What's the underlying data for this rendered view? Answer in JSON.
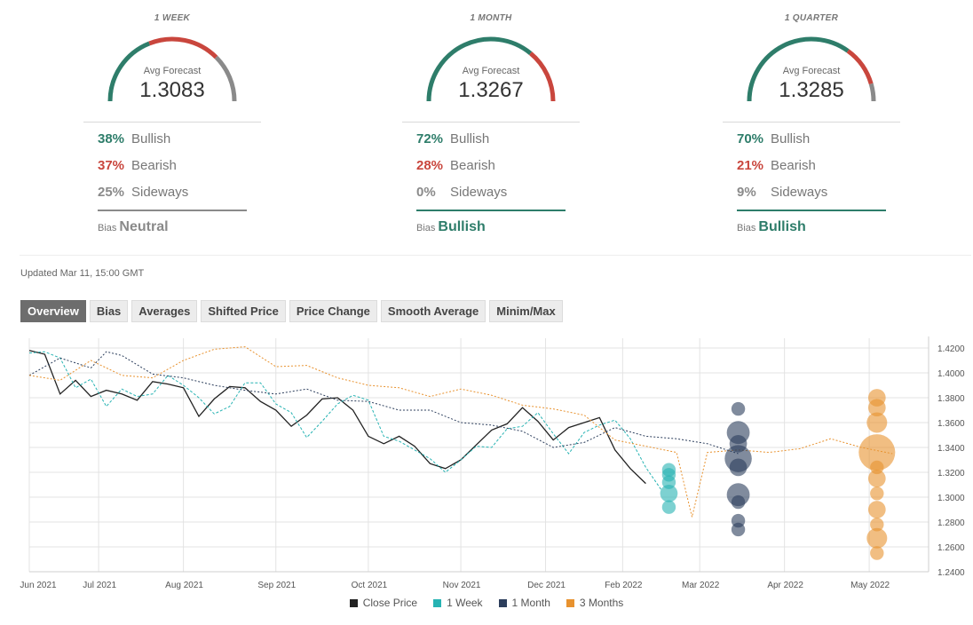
{
  "colors": {
    "green": "#2e7d6a",
    "red": "#c9463d",
    "gray": "#8a8a8a"
  },
  "panels": [
    {
      "title": "1 WEEK",
      "avg_label": "Avg Forecast",
      "avg_value": "1.3083",
      "bullish_pct": "38%",
      "bullish_label": "Bullish",
      "bearish_pct": "37%",
      "bearish_label": "Bearish",
      "sideways_pct": "25%",
      "sideways_label": "Sideways",
      "bias_label": "Bias",
      "bias_value": "Neutral",
      "bias_color": "#8a8a8a",
      "gauge": {
        "bullish": 0.38,
        "bearish": 0.37,
        "sideways": 0.25
      }
    },
    {
      "title": "1 MONTH",
      "avg_label": "Avg Forecast",
      "avg_value": "1.3267",
      "bullish_pct": "72%",
      "bullish_label": "Bullish",
      "bearish_pct": "28%",
      "bearish_label": "Bearish",
      "sideways_pct": "0%",
      "sideways_label": "Sideways",
      "bias_label": "Bias",
      "bias_value": "Bullish",
      "bias_color": "#2e7d6a",
      "gauge": {
        "bullish": 0.72,
        "bearish": 0.28,
        "sideways": 0.0
      }
    },
    {
      "title": "1 QUARTER",
      "avg_label": "Avg Forecast",
      "avg_value": "1.3285",
      "bullish_pct": "70%",
      "bullish_label": "Bullish",
      "bearish_pct": "21%",
      "bearish_label": "Bearish",
      "sideways_pct": "9%",
      "sideways_label": "Sideways",
      "bias_label": "Bias",
      "bias_value": "Bullish",
      "bias_color": "#2e7d6a",
      "gauge": {
        "bullish": 0.7,
        "bearish": 0.21,
        "sideways": 0.09
      }
    }
  ],
  "updated": "Updated Mar 11, 15:00 GMT",
  "tabs": [
    "Overview",
    "Bias",
    "Averages",
    "Shifted Price",
    "Price Change",
    "Smooth Average",
    "Minim/Max"
  ],
  "chart_data": {
    "type": "line",
    "x_ticks": [
      "Jun 2021",
      "Jul 2021",
      "Aug 2021",
      "Sep 2021",
      "Oct 2021",
      "Nov 2021",
      "Dec 2021",
      "Feb 2022",
      "Mar 2022",
      "Apr 2022",
      "May 2022"
    ],
    "y_ticks": [
      "1.4200",
      "1.4000",
      "1.3800",
      "1.3600",
      "1.3400",
      "1.3200",
      "1.3000",
      "1.2800",
      "1.2600",
      "1.2400"
    ],
    "ylim": [
      1.24,
      1.425
    ],
    "grid": true,
    "legend_position": "bottom",
    "series": [
      {
        "name": "Close Price",
        "color": "#222222",
        "style": "solid",
        "points": [
          [
            0,
            1.418
          ],
          [
            2,
            1.415
          ],
          [
            4,
            1.383
          ],
          [
            6,
            1.394
          ],
          [
            8,
            1.381
          ],
          [
            10,
            1.386
          ],
          [
            12,
            1.383
          ],
          [
            14,
            1.378
          ],
          [
            16,
            1.393
          ],
          [
            18,
            1.391
          ],
          [
            20,
            1.388
          ],
          [
            22,
            1.365
          ],
          [
            24,
            1.379
          ],
          [
            26,
            1.389
          ],
          [
            28,
            1.388
          ],
          [
            30,
            1.377
          ],
          [
            32,
            1.37
          ],
          [
            34,
            1.357
          ],
          [
            36,
            1.366
          ],
          [
            38,
            1.379
          ],
          [
            40,
            1.38
          ],
          [
            42,
            1.37
          ],
          [
            44,
            1.349
          ],
          [
            46,
            1.343
          ],
          [
            48,
            1.349
          ],
          [
            50,
            1.341
          ],
          [
            52,
            1.327
          ],
          [
            54,
            1.323
          ],
          [
            56,
            1.33
          ],
          [
            58,
            1.342
          ],
          [
            60,
            1.354
          ],
          [
            62,
            1.359
          ],
          [
            64,
            1.372
          ],
          [
            66,
            1.361
          ],
          [
            68,
            1.346
          ],
          [
            70,
            1.356
          ],
          [
            72,
            1.36
          ],
          [
            74,
            1.364
          ],
          [
            76,
            1.338
          ],
          [
            78,
            1.323
          ],
          [
            80,
            1.311
          ]
        ]
      },
      {
        "name": "1 Week",
        "color": "#27b3b3",
        "style": "dashed",
        "points": [
          [
            0,
            1.416
          ],
          [
            2,
            1.417
          ],
          [
            4,
            1.412
          ],
          [
            6,
            1.388
          ],
          [
            8,
            1.395
          ],
          [
            10,
            1.373
          ],
          [
            12,
            1.387
          ],
          [
            14,
            1.381
          ],
          [
            16,
            1.383
          ],
          [
            18,
            1.398
          ],
          [
            20,
            1.39
          ],
          [
            22,
            1.38
          ],
          [
            24,
            1.367
          ],
          [
            26,
            1.373
          ],
          [
            28,
            1.392
          ],
          [
            30,
            1.392
          ],
          [
            32,
            1.375
          ],
          [
            34,
            1.368
          ],
          [
            36,
            1.348
          ],
          [
            38,
            1.361
          ],
          [
            40,
            1.375
          ],
          [
            42,
            1.382
          ],
          [
            44,
            1.378
          ],
          [
            46,
            1.349
          ],
          [
            48,
            1.345
          ],
          [
            50,
            1.338
          ],
          [
            52,
            1.331
          ],
          [
            54,
            1.32
          ],
          [
            56,
            1.33
          ],
          [
            58,
            1.341
          ],
          [
            60,
            1.34
          ],
          [
            62,
            1.355
          ],
          [
            64,
            1.357
          ],
          [
            66,
            1.368
          ],
          [
            68,
            1.351
          ],
          [
            70,
            1.335
          ],
          [
            72,
            1.352
          ],
          [
            74,
            1.358
          ],
          [
            76,
            1.362
          ],
          [
            78,
            1.347
          ],
          [
            80,
            1.324
          ],
          [
            82,
            1.306
          ]
        ]
      },
      {
        "name": "1 Month",
        "color": "#2c3e5c",
        "style": "dotted",
        "points": [
          [
            0,
            1.398
          ],
          [
            4,
            1.412
          ],
          [
            8,
            1.404
          ],
          [
            10,
            1.417
          ],
          [
            12,
            1.414
          ],
          [
            16,
            1.399
          ],
          [
            20,
            1.396
          ],
          [
            24,
            1.39
          ],
          [
            28,
            1.386
          ],
          [
            32,
            1.383
          ],
          [
            36,
            1.387
          ],
          [
            40,
            1.378
          ],
          [
            44,
            1.377
          ],
          [
            48,
            1.37
          ],
          [
            52,
            1.37
          ],
          [
            56,
            1.36
          ],
          [
            60,
            1.358
          ],
          [
            64,
            1.353
          ],
          [
            68,
            1.34
          ],
          [
            72,
            1.344
          ],
          [
            76,
            1.356
          ],
          [
            80,
            1.349
          ],
          [
            84,
            1.347
          ],
          [
            88,
            1.343
          ],
          [
            92,
            1.335
          ]
        ]
      },
      {
        "name": "3 Months",
        "color": "#e8922f",
        "style": "dotted",
        "points": [
          [
            0,
            1.398
          ],
          [
            4,
            1.394
          ],
          [
            8,
            1.41
          ],
          [
            12,
            1.398
          ],
          [
            16,
            1.396
          ],
          [
            20,
            1.41
          ],
          [
            24,
            1.419
          ],
          [
            28,
            1.421
          ],
          [
            32,
            1.405
          ],
          [
            36,
            1.406
          ],
          [
            40,
            1.396
          ],
          [
            44,
            1.39
          ],
          [
            48,
            1.388
          ],
          [
            52,
            1.381
          ],
          [
            56,
            1.387
          ],
          [
            60,
            1.382
          ],
          [
            64,
            1.374
          ],
          [
            68,
            1.371
          ],
          [
            72,
            1.366
          ],
          [
            76,
            1.346
          ],
          [
            80,
            1.341
          ],
          [
            84,
            1.336
          ],
          [
            86,
            1.284
          ],
          [
            88,
            1.336
          ],
          [
            92,
            1.338
          ],
          [
            96,
            1.336
          ],
          [
            100,
            1.339
          ],
          [
            104,
            1.347
          ],
          [
            108,
            1.34
          ],
          [
            112,
            1.335
          ]
        ]
      }
    ],
    "forecast_bubbles": [
      {
        "series": "1 Week",
        "color": "#27b3b3",
        "x": 83,
        "values": [
          1.322,
          1.318,
          1.312,
          1.303,
          1.292
        ],
        "weights": [
          1,
          1,
          1,
          2,
          1
        ]
      },
      {
        "series": "1 Month",
        "color": "#2c3e5c",
        "x": 92,
        "values": [
          1.371,
          1.352,
          1.343,
          1.331,
          1.324,
          1.302,
          1.296,
          1.281,
          1.274
        ],
        "weights": [
          1,
          4,
          2,
          6,
          2,
          4,
          1,
          1,
          1
        ]
      },
      {
        "series": "3 Months",
        "color": "#e8922f",
        "x": 110,
        "values": [
          1.38,
          1.372,
          1.36,
          1.336,
          1.324,
          1.315,
          1.303,
          1.29,
          1.278,
          1.267,
          1.255
        ],
        "weights": [
          2,
          2,
          3,
          12,
          1,
          2,
          1,
          2,
          1,
          3,
          1
        ]
      }
    ]
  }
}
